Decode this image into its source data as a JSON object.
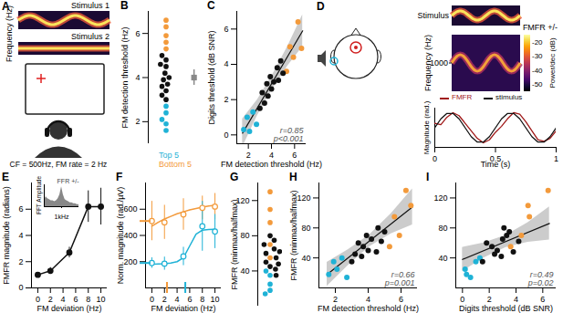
{
  "chart_data": [
    {
      "panel_label": "A",
      "type": "schematic",
      "texts": {
        "stimulus_1": "Stimulus 1",
        "stimulus_2": "Stimulus 2",
        "y_label": "Frequency (Hz)",
        "caption": "CF = 500Hz, FM rate = 2 Hz"
      }
    },
    {
      "panel_label": "B",
      "type": "strip",
      "y_label": "FM detection threshold (Hz)",
      "ylim": [
        1,
        7
      ],
      "yticks": [
        2,
        4,
        6
      ],
      "legend": "bottom",
      "series": [
        {
          "name": "Top 5",
          "color": "#1fb2d6",
          "values": [
            1.6,
            1.9,
            2.1,
            2.4,
            2.7
          ]
        },
        {
          "name": "Bottom 5",
          "color": "#f39a3b",
          "values": [
            5.3,
            5.6,
            5.9,
            6.3,
            6.6
          ]
        },
        {
          "color": "#111111",
          "values": [
            3.0,
            3.2,
            3.4,
            3.6,
            3.7,
            3.9,
            4.0,
            4.2,
            4.5,
            4.6,
            4.8,
            5.0
          ]
        }
      ],
      "summary": {
        "mean": 4.0,
        "error": 0.35,
        "color": "#888888",
        "marker": "square"
      }
    },
    {
      "panel_label": "C",
      "type": "scatter",
      "x_label": "FM detection threshold (Hz)",
      "y_label": "Digits threshold (dB SNR)",
      "xlim": [
        1,
        7
      ],
      "xticks": [
        2,
        4,
        6
      ],
      "ylim": [
        -0.5,
        7
      ],
      "yticks": [
        0,
        2,
        4,
        6
      ],
      "series": [
        {
          "color": "#1fb2d6",
          "x": [
            1.6,
            1.9,
            2.1,
            2.4,
            2.7
          ],
          "y": [
            0.3,
            1.0,
            0.2,
            1.3,
            0.6
          ]
        },
        {
          "color": "#f39a3b",
          "x": [
            5.3,
            5.6,
            5.9,
            6.3,
            6.6
          ],
          "y": [
            3.6,
            5.0,
            4.4,
            6.4,
            4.9
          ]
        },
        {
          "color": "#111111",
          "x": [
            3.0,
            3.2,
            3.4,
            3.6,
            3.7,
            3.9,
            4.0,
            4.2,
            4.5,
            4.6,
            4.8,
            5.0
          ],
          "y": [
            1.5,
            2.4,
            1.8,
            2.9,
            2.2,
            3.3,
            2.6,
            3.0,
            3.8,
            3.1,
            4.2,
            3.5
          ]
        }
      ],
      "fit": {
        "x": [
          1.5,
          6.7
        ],
        "y": [
          0.1,
          5.9
        ],
        "ci_x": [
          1.5,
          2.8,
          4.1,
          5.4,
          6.7
        ],
        "ci_lower": [
          -0.7,
          1.1,
          2.6,
          3.9,
          5.0
        ],
        "ci_upper": [
          0.9,
          2.0,
          3.4,
          5.0,
          6.8
        ],
        "color": "#111111",
        "band_color": "#cccccc"
      },
      "annotations": [
        "r=0.85",
        "p<0.001"
      ]
    },
    {
      "panel_label": "D",
      "type": "schematic",
      "stimulus_title": "Stimulus",
      "spectrogram": {
        "title": "FMFR +/-",
        "y_label": "Frequency (Hz)",
        "ylim": [
          0,
          2000
        ],
        "yticks": [
          1000
        ]
      },
      "colorbar": {
        "label": "Power/dec (dB)",
        "range": [
          -55,
          -15
        ],
        "ticks": [
          -20,
          -30,
          -40,
          -50
        ]
      },
      "trace": {
        "type": "line",
        "x_label": "Time (s)",
        "y_label": "Magnitude (rad.)",
        "xlim": [
          0,
          1
        ],
        "xticks": [
          0,
          0.5,
          1
        ],
        "ylim": [
          -1.3,
          1.3
        ],
        "tick_labels": "x",
        "legend": "top",
        "x": [
          0,
          0.05,
          0.1,
          0.15,
          0.2,
          0.25,
          0.3,
          0.35,
          0.4,
          0.45,
          0.5,
          0.55,
          0.6,
          0.65,
          0.7,
          0.75,
          0.8,
          0.85,
          0.9,
          0.95,
          1
        ],
        "series": [
          {
            "name": "FMFR",
            "color": "#a01818",
            "values": [
              0.3,
              0.2,
              0.7,
              1.0,
              0.8,
              0.3,
              -0.2,
              -0.7,
              -1.0,
              -0.8,
              -0.3,
              0.1,
              0.6,
              1.0,
              0.9,
              0.4,
              -0.2,
              -0.8,
              -0.9,
              -0.7,
              -0.2
            ]
          },
          {
            "name": "stimulus",
            "color": "#111111",
            "values": [
              0,
              0.59,
              0.95,
              0.95,
              0.59,
              0,
              -0.59,
              -0.95,
              -0.95,
              -0.59,
              0,
              0.59,
              0.95,
              0.95,
              0.59,
              0,
              -0.59,
              -0.95,
              -0.95,
              -0.59,
              0
            ]
          }
        ]
      }
    },
    {
      "panel_label": "E",
      "type": "line",
      "x_label": "FM deviation (Hz)",
      "y_label": "FMFR magnitude (radians)",
      "xlim": [
        -1,
        11
      ],
      "xticks": [
        0,
        2,
        4,
        6,
        8,
        10
      ],
      "ylim": [
        0,
        8
      ],
      "yticks": [
        0,
        2,
        4,
        6
      ],
      "marker": "circle",
      "series": [
        {
          "color": "#111111",
          "x": [
            0,
            2,
            5,
            8,
            10
          ],
          "values": [
            1.0,
            1.3,
            2.7,
            6.2,
            6.2
          ],
          "errors": [
            0.15,
            0.25,
            0.4,
            1.2,
            1.4
          ]
        }
      ],
      "inset": {
        "type": "area",
        "title": "FFR +/-",
        "y_label": "FFT Amplitude",
        "xlim": [
          0,
          2
        ],
        "xticks": [
          {
            "value": 1,
            "label": "1kHz"
          }
        ],
        "ylim": [
          0,
          1.1
        ],
        "tick_labels": "x",
        "color": "#888888",
        "x": [
          0,
          0.1,
          0.2,
          0.3,
          0.4,
          0.5,
          0.6,
          0.7,
          0.8,
          0.9,
          1.0,
          1.1,
          1.2,
          1.3,
          1.4,
          1.5,
          1.6,
          1.7,
          1.8,
          1.9,
          2.0
        ],
        "values": [
          0.3,
          0.5,
          0.4,
          0.35,
          0.3,
          0.3,
          0.25,
          0.3,
          0.4,
          0.6,
          1.0,
          0.6,
          0.35,
          0.3,
          0.25,
          0.2,
          0.2,
          0.15,
          0.15,
          0.1,
          0.1
        ]
      }
    },
    {
      "panel_label": "F",
      "type": "line",
      "x_label": "FM deviation (Hz)",
      "y_label": "Norm. magnitude (rad./µV)",
      "xlim": [
        -1,
        11
      ],
      "xticks": [
        0,
        2,
        4,
        6,
        8,
        10
      ],
      "ylim": [
        0,
        800
      ],
      "yticks": [
        200,
        400,
        600
      ],
      "marker": "open_circle",
      "series": [
        {
          "color": "#f39a3b",
          "x": [
            0,
            2,
            5,
            8,
            10
          ],
          "values": [
            510,
            500,
            560,
            610,
            620
          ],
          "errors": [
            150,
            130,
            120,
            90,
            100
          ],
          "fit_x": [
            0,
            1,
            2,
            3,
            4,
            5,
            6,
            7,
            8,
            9,
            10
          ],
          "fit": [
            470,
            500,
            525,
            545,
            565,
            580,
            595,
            605,
            615,
            625,
            630
          ],
          "x_threshold": 2.4,
          "y_threshold": 510
        },
        {
          "color": "#1fb2d6",
          "x": [
            0,
            2,
            5,
            8,
            10
          ],
          "values": [
            190,
            185,
            240,
            470,
            430
          ],
          "errors": [
            40,
            50,
            70,
            190,
            130
          ],
          "fit_x": [
            0,
            1,
            2,
            3,
            4,
            5,
            6,
            7,
            8,
            9,
            10
          ],
          "fit": [
            180,
            182,
            185,
            190,
            200,
            230,
            320,
            410,
            440,
            445,
            447
          ],
          "x_threshold": 5.3,
          "y_threshold": 190
        }
      ]
    },
    {
      "panel_label": "G",
      "type": "strip",
      "y_label": "FMFR (minmax/halfmax)",
      "ylim": [
        0,
        140
      ],
      "yticks": [
        40,
        80,
        120
      ],
      "series": [
        {
          "color": "#1fb2d6",
          "values": [
            18,
            35,
            25,
            40,
            14
          ]
        },
        {
          "color": "#f39a3b",
          "values": [
            55,
            95,
            70,
            130,
            110
          ]
        },
        {
          "color": "#111111",
          "values": [
            35,
            45,
            60,
            42,
            55,
            70,
            50,
            65,
            48,
            80,
            62,
            75
          ]
        }
      ]
    },
    {
      "panel_label": "H",
      "type": "scatter",
      "x_label": "FM detection threshold (Hz)",
      "y_label": "FMFR (minmax/halfmax)",
      "xlim": [
        1,
        7
      ],
      "xticks": [
        2,
        4,
        6
      ],
      "ylim": [
        0,
        140
      ],
      "yticks": [
        40,
        80,
        120
      ],
      "series": [
        {
          "color": "#1fb2d6",
          "x": [
            1.6,
            1.9,
            2.1,
            2.4,
            2.7
          ],
          "y": [
            18,
            35,
            25,
            40,
            14
          ]
        },
        {
          "color": "#f39a3b",
          "x": [
            5.3,
            5.6,
            5.9,
            6.3,
            6.6
          ],
          "y": [
            55,
            95,
            70,
            130,
            110
          ]
        },
        {
          "color": "#111111",
          "x": [
            3.0,
            3.2,
            3.4,
            3.6,
            3.7,
            3.9,
            4.0,
            4.2,
            4.5,
            4.6,
            4.8,
            5.0
          ],
          "y": [
            35,
            45,
            60,
            42,
            55,
            70,
            50,
            65,
            48,
            80,
            62,
            75
          ]
        }
      ],
      "fit": {
        "x": [
          1.5,
          6.7
        ],
        "y": [
          18,
          108
        ],
        "ci_x": [
          1.5,
          2.8,
          4.1,
          5.4,
          6.7
        ],
        "ci_lower": [
          2,
          30,
          55,
          72,
          84
        ],
        "ci_upper": [
          34,
          51,
          71,
          99,
          132
        ],
        "color": "#111111",
        "band_color": "#cccccc"
      },
      "annotations": [
        "r=0.66",
        "p=0.001"
      ]
    },
    {
      "panel_label": "I",
      "type": "scatter",
      "x_label": "Digits threshold (dB SNR)",
      "xlim": [
        -0.5,
        7
      ],
      "xticks": [
        0,
        2,
        4,
        6
      ],
      "ylim": [
        0,
        140
      ],
      "yticks": [
        40,
        80,
        120
      ],
      "series": [
        {
          "color": "#1fb2d6",
          "x": [
            0.3,
            1.0,
            0.2,
            1.3,
            0.6
          ],
          "y": [
            18,
            35,
            25,
            40,
            14
          ]
        },
        {
          "color": "#f39a3b",
          "x": [
            3.6,
            5.0,
            4.4,
            6.4,
            4.9
          ],
          "y": [
            55,
            95,
            70,
            130,
            110
          ]
        },
        {
          "color": "#111111",
          "x": [
            1.5,
            2.4,
            1.8,
            2.9,
            2.2,
            3.3,
            2.6,
            3.0,
            3.8,
            3.1,
            4.2,
            3.5
          ],
          "y": [
            35,
            45,
            60,
            42,
            55,
            70,
            50,
            65,
            48,
            80,
            62,
            75
          ]
        }
      ],
      "fit": {
        "x": [
          0,
          6.5
        ],
        "y": [
          38,
          86
        ],
        "ci_x": [
          0,
          1.6,
          3.25,
          4.9,
          6.5
        ],
        "ci_lower": [
          22,
          40,
          54,
          61,
          64
        ],
        "ci_upper": [
          54,
          60,
          70,
          87,
          108
        ],
        "color": "#111111",
        "band_color": "#cccccc"
      },
      "annotations": [
        "r=0.49",
        "p=0.02"
      ]
    }
  ]
}
